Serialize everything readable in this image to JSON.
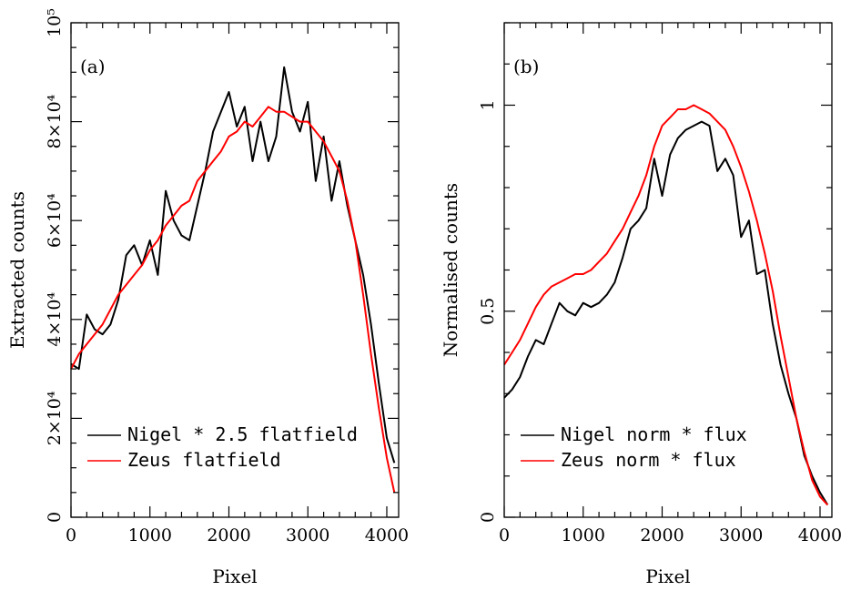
{
  "chart_data": [
    {
      "type": "line",
      "panel_label": "(a)",
      "xlabel": "Pixel",
      "ylabel": "Extracted counts",
      "xlim": [
        0,
        4150
      ],
      "ylim": [
        0,
        100000
      ],
      "x_ticks": [
        0,
        1000,
        2000,
        3000,
        4000
      ],
      "x_tick_labels": [
        "0",
        "1000",
        "2000",
        "3000",
        "4000"
      ],
      "y_ticks": [
        0,
        20000,
        40000,
        60000,
        80000,
        100000
      ],
      "y_tick_labels": [
        "0",
        "2×10⁴",
        "4×10⁴",
        "6×10⁴",
        "8×10⁴",
        "10⁵"
      ],
      "legend_position": "bottom-left",
      "series": [
        {
          "name": "Nigel * 2.5 flatfield",
          "color": "#000000",
          "x": [
            0,
            100,
            200,
            300,
            400,
            500,
            600,
            700,
            800,
            900,
            1000,
            1100,
            1200,
            1300,
            1400,
            1500,
            1600,
            1700,
            1800,
            1900,
            2000,
            2100,
            2200,
            2300,
            2400,
            2500,
            2600,
            2700,
            2800,
            2900,
            3000,
            3100,
            3200,
            3300,
            3400,
            3500,
            3600,
            3700,
            3800,
            3900,
            4000,
            4096
          ],
          "y": [
            31000,
            30000,
            41000,
            38000,
            37000,
            39000,
            44000,
            53000,
            55000,
            51000,
            56000,
            49000,
            66000,
            60000,
            57000,
            56000,
            63000,
            70000,
            78000,
            82000,
            86000,
            79000,
            83000,
            72000,
            80000,
            72000,
            77000,
            91000,
            82000,
            78000,
            84000,
            68000,
            77000,
            64000,
            72000,
            63000,
            56000,
            49000,
            39000,
            27000,
            16000,
            11000
          ]
        },
        {
          "name": "Zeus flatfield",
          "color": "#ff0000",
          "x": [
            0,
            100,
            200,
            300,
            400,
            500,
            600,
            700,
            800,
            900,
            1000,
            1100,
            1200,
            1300,
            1400,
            1500,
            1600,
            1700,
            1800,
            1900,
            2000,
            2100,
            2200,
            2300,
            2400,
            2500,
            2600,
            2700,
            2800,
            2900,
            3000,
            3100,
            3200,
            3300,
            3400,
            3500,
            3600,
            3700,
            3800,
            3900,
            4000,
            4096
          ],
          "y": [
            30000,
            33000,
            35000,
            37000,
            39000,
            42000,
            45000,
            47000,
            49000,
            51000,
            54000,
            56000,
            59000,
            61000,
            63000,
            64000,
            68000,
            70000,
            72000,
            74000,
            77000,
            78000,
            80000,
            79000,
            81000,
            83000,
            82000,
            82000,
            81000,
            80000,
            80000,
            78000,
            76000,
            73000,
            70000,
            64000,
            56000,
            45000,
            33000,
            22000,
            12000,
            5000
          ]
        }
      ]
    },
    {
      "type": "line",
      "panel_label": "(b)",
      "xlabel": "Pixel",
      "ylabel": "Normalised counts",
      "xlim": [
        0,
        4150
      ],
      "ylim": [
        0,
        1.2
      ],
      "x_ticks": [
        0,
        1000,
        2000,
        3000,
        4000
      ],
      "x_tick_labels": [
        "0",
        "1000",
        "2000",
        "3000",
        "4000"
      ],
      "y_ticks": [
        0,
        0.5,
        1
      ],
      "y_tick_labels": [
        "0",
        "0.5",
        "1"
      ],
      "legend_position": "bottom-left",
      "series": [
        {
          "name": "Nigel norm * flux",
          "color": "#000000",
          "x": [
            0,
            100,
            200,
            300,
            400,
            500,
            600,
            700,
            800,
            900,
            1000,
            1100,
            1200,
            1300,
            1400,
            1500,
            1600,
            1700,
            1800,
            1900,
            2000,
            2100,
            2200,
            2300,
            2400,
            2500,
            2600,
            2700,
            2800,
            2900,
            3000,
            3100,
            3200,
            3300,
            3400,
            3500,
            3600,
            3700,
            3800,
            3900,
            4000,
            4096
          ],
          "y": [
            0.29,
            0.31,
            0.34,
            0.39,
            0.43,
            0.42,
            0.47,
            0.52,
            0.5,
            0.49,
            0.52,
            0.51,
            0.52,
            0.54,
            0.57,
            0.63,
            0.7,
            0.72,
            0.75,
            0.87,
            0.78,
            0.88,
            0.92,
            0.94,
            0.95,
            0.96,
            0.95,
            0.84,
            0.87,
            0.83,
            0.68,
            0.72,
            0.59,
            0.6,
            0.47,
            0.37,
            0.3,
            0.24,
            0.15,
            0.1,
            0.06,
            0.03
          ]
        },
        {
          "name": "Zeus norm * flux",
          "color": "#ff0000",
          "x": [
            0,
            100,
            200,
            300,
            400,
            500,
            600,
            700,
            800,
            900,
            1000,
            1100,
            1200,
            1300,
            1400,
            1500,
            1600,
            1700,
            1800,
            1900,
            2000,
            2100,
            2200,
            2300,
            2400,
            2500,
            2600,
            2700,
            2800,
            2900,
            3000,
            3100,
            3200,
            3300,
            3400,
            3500,
            3600,
            3700,
            3800,
            3900,
            4000,
            4096
          ],
          "y": [
            0.37,
            0.4,
            0.43,
            0.47,
            0.51,
            0.54,
            0.56,
            0.57,
            0.58,
            0.59,
            0.59,
            0.6,
            0.62,
            0.64,
            0.67,
            0.7,
            0.74,
            0.78,
            0.83,
            0.9,
            0.95,
            0.97,
            0.99,
            0.99,
            1.0,
            0.99,
            0.98,
            0.96,
            0.94,
            0.9,
            0.85,
            0.79,
            0.72,
            0.64,
            0.55,
            0.44,
            0.34,
            0.24,
            0.16,
            0.09,
            0.05,
            0.03
          ]
        }
      ]
    }
  ]
}
